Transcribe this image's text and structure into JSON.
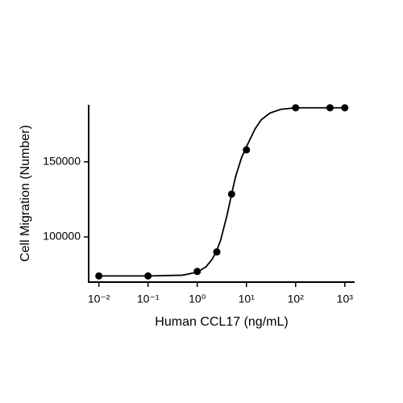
{
  "chart_data": {
    "type": "scatter",
    "x_label": "Human CCL17 (ng/mL)",
    "y_label": "Cell Migration (Number)",
    "xscale": "log",
    "xlim": [
      0.0062,
      1585
    ],
    "ylim": [
      69900,
      188000
    ],
    "xticks": [
      {
        "value": 0.01,
        "label": "10⁻²"
      },
      {
        "value": 0.1,
        "label": "10⁻¹"
      },
      {
        "value": 1,
        "label": "10⁰"
      },
      {
        "value": 10,
        "label": "10¹"
      },
      {
        "value": 100,
        "label": "10²"
      },
      {
        "value": 1000,
        "label": "10³"
      }
    ],
    "yticks": [
      100000,
      150000
    ],
    "series": [
      {
        "type": "line",
        "color": "#000000",
        "x": [
          0.01,
          0.1,
          0.5,
          1,
          1.5,
          2,
          2.5,
          3,
          4,
          5,
          6,
          8,
          10,
          15,
          20,
          30,
          50,
          100,
          1000
        ],
        "values": [
          74000,
          74000,
          74500,
          76500,
          80000,
          85000,
          91000,
          98000,
          114000,
          128500,
          140000,
          153000,
          160000,
          172000,
          178000,
          182500,
          185000,
          186000,
          186000
        ]
      },
      {
        "type": "scatter",
        "color": "#000000",
        "x": [
          0.01,
          0.1,
          1,
          2.5,
          5,
          10,
          100,
          500,
          1000
        ],
        "values": [
          74000,
          74000,
          77000,
          90000,
          128500,
          158000,
          186000,
          186000,
          186000
        ]
      }
    ]
  }
}
